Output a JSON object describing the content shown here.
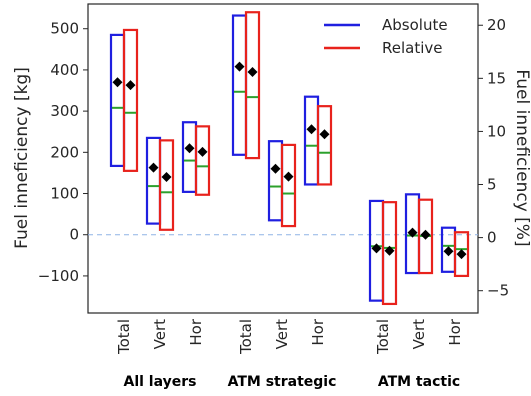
{
  "chart_data": {
    "type": "box",
    "ylabel_left": "Fuel inneficiency [kg]",
    "ylabel_right": "Fuel inneficiency [%]",
    "ylim_left": [
      -190,
      560
    ],
    "ylim_right": [
      -7.1,
      22.0
    ],
    "yticks_left": [
      -100,
      0,
      100,
      200,
      300,
      400,
      500
    ],
    "yticks_right": [
      -5,
      0,
      5,
      10,
      15,
      20
    ],
    "zero_line": {
      "y": 0,
      "style": "dashed",
      "color": "#8fb4e6"
    },
    "legend": [
      {
        "name": "Absolute",
        "color": "#1f1fe0"
      },
      {
        "name": "Relative",
        "color": "#e8221c"
      }
    ],
    "median_color": "#2ca02c",
    "mean_marker": "diamond",
    "groups": [
      {
        "label": "All layers",
        "categories": [
          {
            "label": "Total",
            "absolute": {
              "low": 167,
              "high": 485,
              "median": 308,
              "mean": 370
            },
            "relative": {
              "low": 155,
              "high": 497,
              "median": 296,
              "mean": 363
            }
          },
          {
            "label": "Vert",
            "absolute": {
              "low": 27,
              "high": 235,
              "median": 118,
              "mean": 163
            },
            "relative": {
              "low": 12,
              "high": 229,
              "median": 103,
              "mean": 140
            }
          },
          {
            "label": "Hor",
            "absolute": {
              "low": 104,
              "high": 273,
              "median": 180,
              "mean": 210
            },
            "relative": {
              "low": 97,
              "high": 263,
              "median": 166,
              "mean": 201
            }
          }
        ]
      },
      {
        "label": "ATM strategic",
        "categories": [
          {
            "label": "Total",
            "absolute": {
              "low": 194,
              "high": 532,
              "median": 347,
              "mean": 408
            },
            "relative": {
              "low": 186,
              "high": 540,
              "median": 334,
              "mean": 395
            }
          },
          {
            "label": "Vert",
            "absolute": {
              "low": 35,
              "high": 227,
              "median": 117,
              "mean": 160
            },
            "relative": {
              "low": 21,
              "high": 218,
              "median": 100,
              "mean": 141
            }
          },
          {
            "label": "Hor",
            "absolute": {
              "low": 122,
              "high": 335,
              "median": 216,
              "mean": 256
            },
            "relative": {
              "low": 122,
              "high": 312,
              "median": 199,
              "mean": 244
            }
          }
        ]
      },
      {
        "label": "ATM tactic",
        "categories": [
          {
            "label": "Total",
            "absolute": {
              "low": -160,
              "high": 82,
              "median": -28,
              "mean": -33
            },
            "relative": {
              "low": -168,
              "high": 79,
              "median": -32,
              "mean": -39
            }
          },
          {
            "label": "Vert",
            "absolute": {
              "low": -93,
              "high": 98,
              "median": -2,
              "mean": 5
            },
            "relative": {
              "low": -93,
              "high": 85,
              "median": -3,
              "mean": 0
            }
          },
          {
            "label": "Hor",
            "absolute": {
              "low": -90,
              "high": 17,
              "median": -27,
              "mean": -40
            },
            "relative": {
              "low": -100,
              "high": 6,
              "median": -35,
              "mean": -47
            }
          }
        ]
      }
    ]
  }
}
